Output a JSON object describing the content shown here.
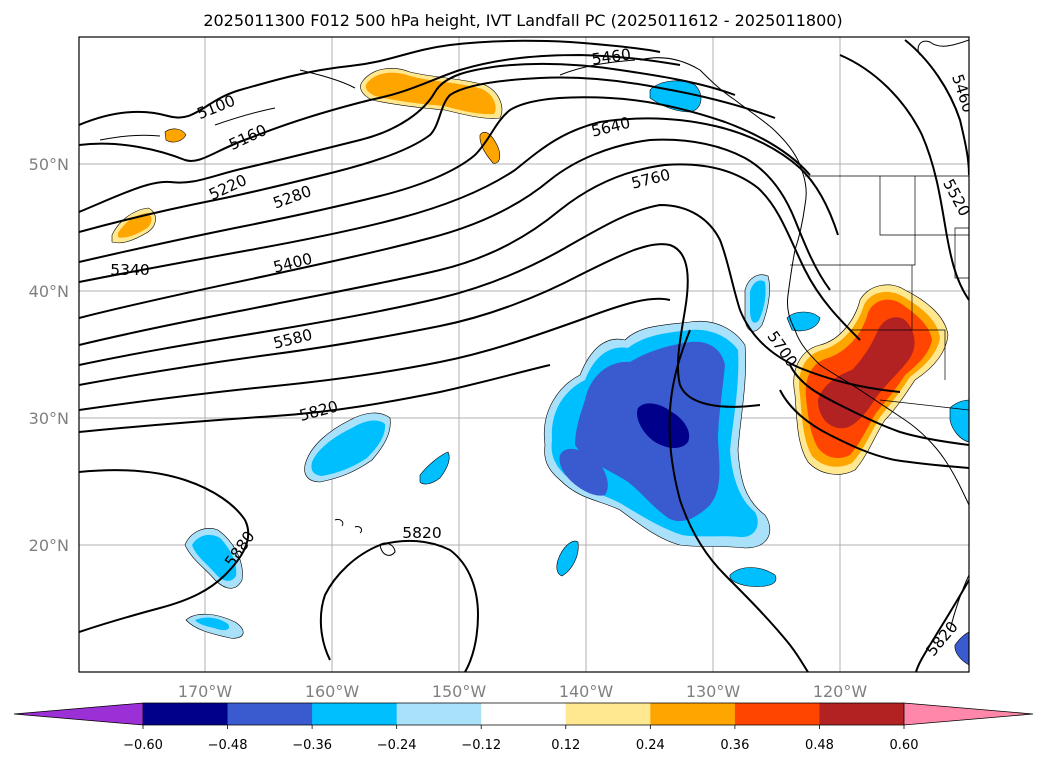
{
  "title": "2025011300 F012 500 hPa height, IVT Landfall PC (2025011612 - 2025011800)",
  "map": {
    "lon_range": [
      -180,
      -110
    ],
    "lat_range": [
      10,
      60
    ],
    "gridlines": true,
    "lon_labels": [
      "170°W",
      "160°W",
      "150°W",
      "140°W",
      "130°W",
      "120°W"
    ],
    "lat_labels": [
      "50°N",
      "40°N",
      "30°N",
      "20°N"
    ],
    "height_contour_labels": [
      "5100",
      "5160",
      "5220",
      "5280",
      "5340",
      "5400",
      "5460",
      "5520",
      "5580",
      "5640",
      "5700",
      "5760",
      "5820",
      "5820",
      "5820",
      "5880",
      "5460"
    ]
  },
  "colorbar": {
    "tick_labels": [
      "−0.60",
      "−0.48",
      "−0.36",
      "−0.24",
      "−0.12",
      "0.12",
      "0.24",
      "0.36",
      "0.48",
      "0.60"
    ],
    "colors": [
      "#9b30d6",
      "#00008b",
      "#3a5bcf",
      "#00bfff",
      "#aae1fa",
      "#ffffff",
      "#ffe88f",
      "#ffa500",
      "#ff4500",
      "#b22222",
      "#ff88aa"
    ],
    "extend": "both"
  },
  "colors": {
    "gridline": "#b0b0b0",
    "tick_label": "#808080"
  }
}
